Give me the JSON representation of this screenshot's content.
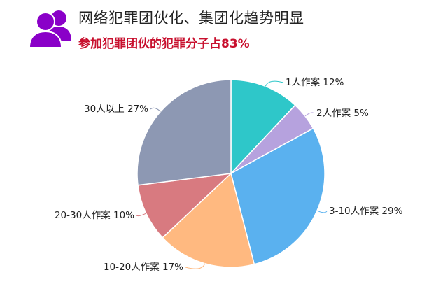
{
  "title": "网络犯罪团伙化、集团化趋势明显",
  "subtitle": "参加犯罪团伙的犯罪分子占83%",
  "icon": "people-icon",
  "colors": {
    "icon": "#8a00c8",
    "subtitle": "#c8102e"
  },
  "chart_data": {
    "type": "pie",
    "categories": [
      "1人作案",
      "2人作案",
      "3-10人作案",
      "10-20人作案",
      "20-30人作案",
      "30人以上"
    ],
    "values": [
      12,
      5,
      29,
      17,
      10,
      27
    ],
    "labels": [
      "1人作案  12%",
      "2人作案  5%",
      "3-10人作案  29%",
      "10-20人作案  17%",
      "20-30人作案  10%",
      "30人以上  27%"
    ],
    "colors": [
      "#2ec7c9",
      "#b6a2de",
      "#5ab1ef",
      "#ffb980",
      "#d87a80",
      "#8d98b3"
    ],
    "start": "top",
    "direction": "clockwise"
  }
}
